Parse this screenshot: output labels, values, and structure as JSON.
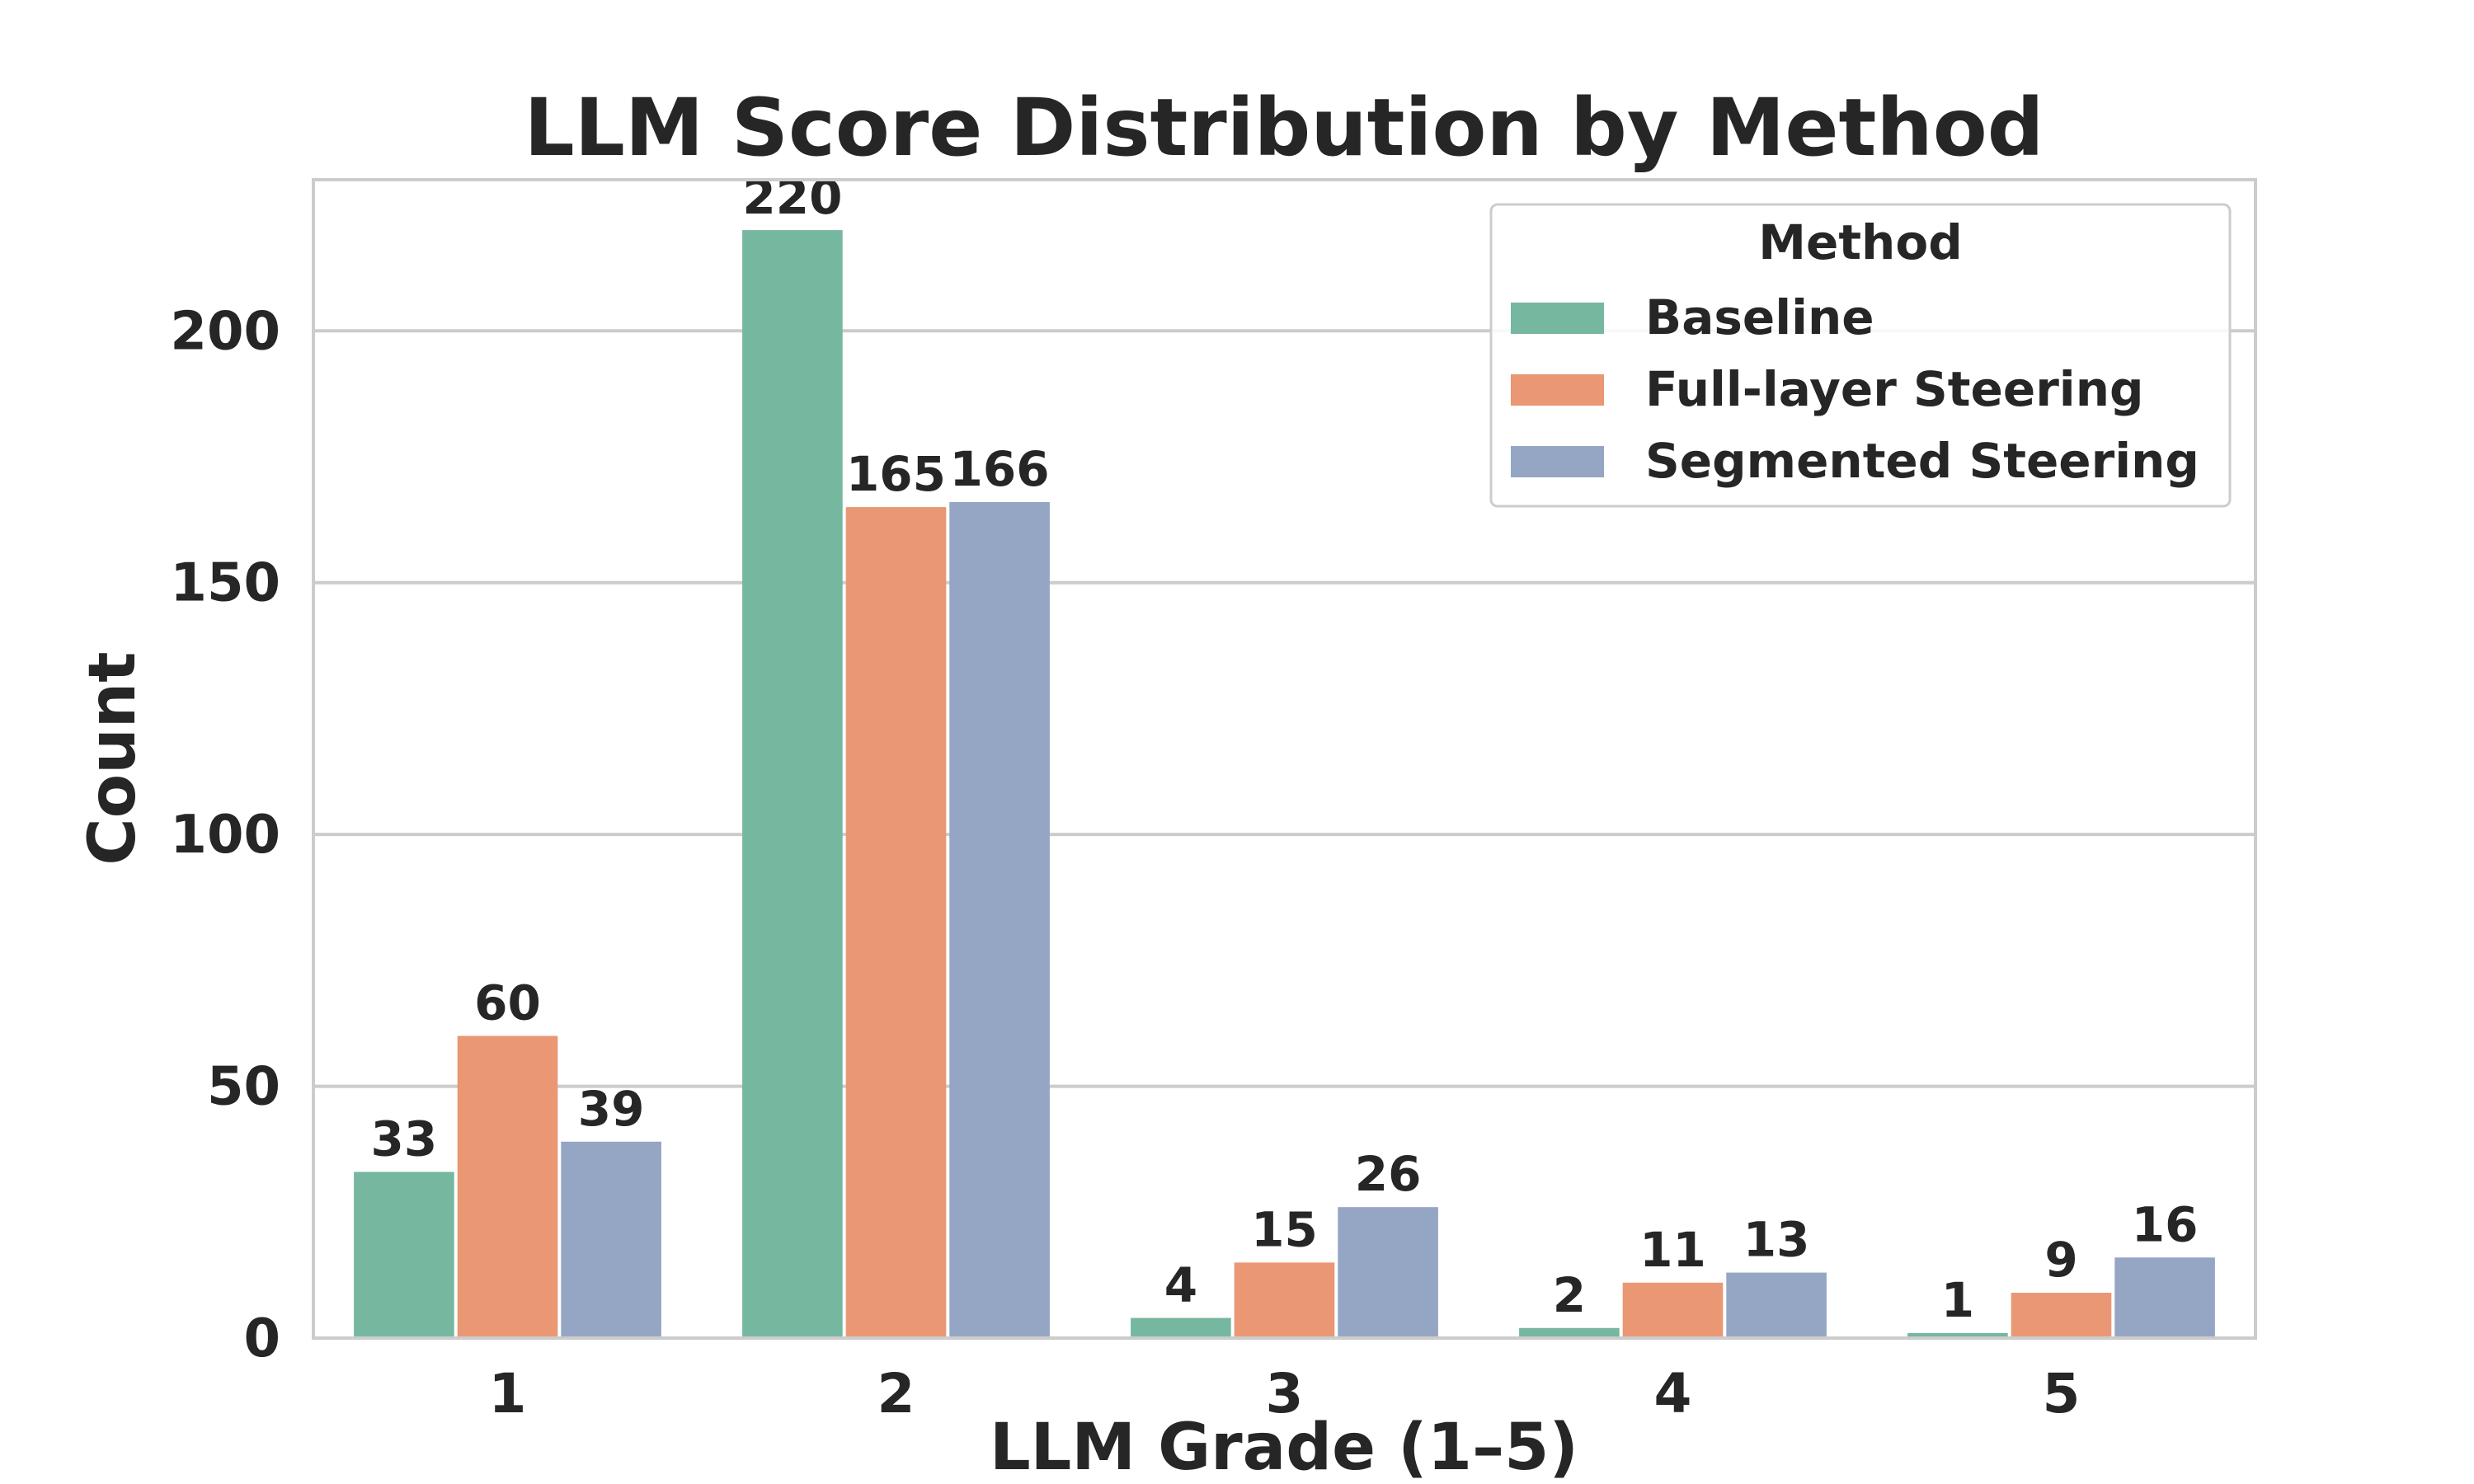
{
  "chart_data": {
    "type": "bar",
    "title": "LLM Score Distribution by Method",
    "xlabel": "LLM Grade (1–5)",
    "ylabel": "Count",
    "categories": [
      "1",
      "2",
      "3",
      "4",
      "5"
    ],
    "ylim": [
      0,
      230
    ],
    "yticks": [
      0,
      50,
      100,
      150,
      200
    ],
    "grid": true,
    "legend": {
      "title": "Method",
      "placement": "top-right"
    },
    "series": [
      {
        "name": "Baseline",
        "color": "#76b7a0",
        "values": [
          33,
          220,
          4,
          2,
          1
        ]
      },
      {
        "name": "Full-layer Steering",
        "color": "#ea9774",
        "values": [
          60,
          165,
          15,
          11,
          9
        ]
      },
      {
        "name": "Segmented Steering",
        "color": "#95a5c4",
        "values": [
          39,
          166,
          26,
          13,
          16
        ]
      }
    ]
  }
}
